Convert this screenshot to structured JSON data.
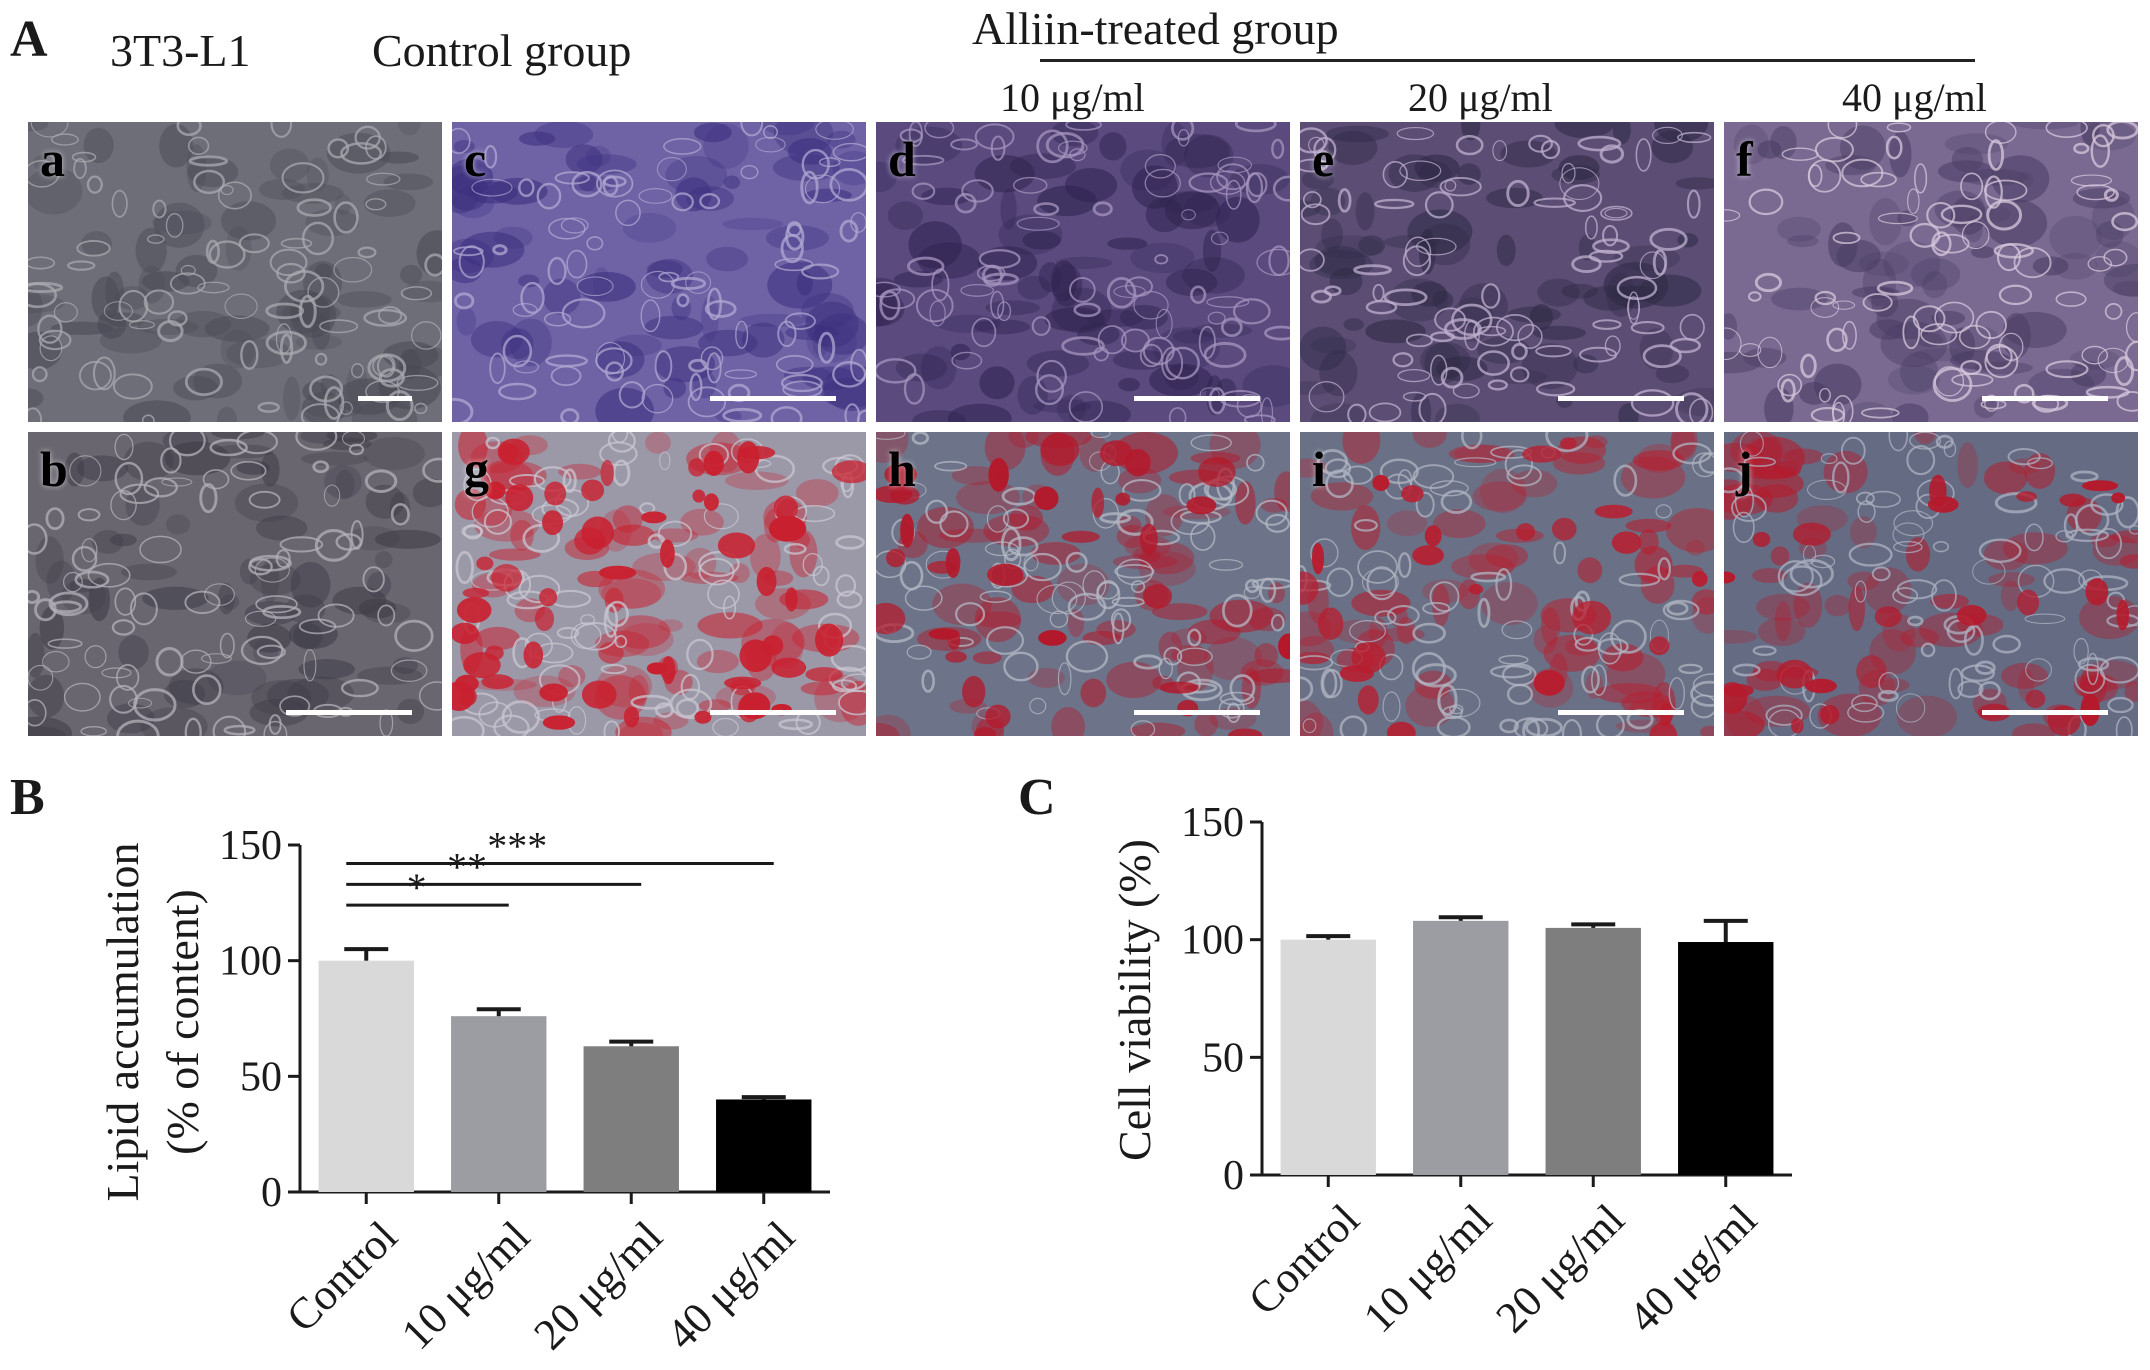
{
  "panel_labels": {
    "A": "A",
    "B": "B",
    "C": "C"
  },
  "headers": {
    "col_3t3": "3T3-L1",
    "col_control": "Control group",
    "treated_group": "Alliin-treated group",
    "dose_10": "10 μg/ml",
    "dose_20": "20 μg/ml",
    "dose_40": "40 μg/ml"
  },
  "micrographs": [
    {
      "letter": "a",
      "stain": "phase-contrast",
      "colors": [
        "#6e6e78",
        "#a9a9b0",
        "#4a4a55"
      ]
    },
    {
      "letter": "c",
      "stain": "crystal violet",
      "colors": [
        "#6f63a6",
        "#b0a8d2",
        "#3c2f7e"
      ]
    },
    {
      "letter": "d",
      "stain": "crystal violet",
      "colors": [
        "#5a4a7e",
        "#a796bf",
        "#2f2450"
      ]
    },
    {
      "letter": "e",
      "stain": "crystal violet",
      "colors": [
        "#5b4d74",
        "#c0b0cf",
        "#2f2a45"
      ]
    },
    {
      "letter": "f",
      "stain": "crystal violet",
      "colors": [
        "#7a6a92",
        "#d8c8dc",
        "#4a3d63"
      ]
    },
    {
      "letter": "b",
      "stain": "phase-contrast",
      "colors": [
        "#6a6670",
        "#b5b2ba",
        "#3f3c47"
      ]
    },
    {
      "letter": "g",
      "stain": "oil red O",
      "colors": [
        "#9b98a8",
        "#c9c7d2",
        "#c9202f"
      ]
    },
    {
      "letter": "h",
      "stain": "oil red O",
      "colors": [
        "#6d7388",
        "#b6b9c6",
        "#b3192b"
      ]
    },
    {
      "letter": "i",
      "stain": "oil red O",
      "colors": [
        "#6a7085",
        "#b2b5c3",
        "#b81d2e"
      ]
    },
    {
      "letter": "j",
      "stain": "oil red O",
      "colors": [
        "#656b82",
        "#aeb2c2",
        "#b51a2c"
      ]
    }
  ],
  "chart_data": [
    {
      "id": "B",
      "type": "bar",
      "ylabel_line1": "Lipid accumulation",
      "ylabel_line2": "(% of content)",
      "categories": [
        "Control",
        "10 μg/ml",
        "20 μg/ml",
        "40 μg/ml"
      ],
      "values": [
        100,
        76,
        63,
        40
      ],
      "errors": [
        5,
        3,
        2,
        1
      ],
      "colors": [
        "#d9d9d9",
        "#9c9ca3",
        "#7e7e7e",
        "#000000"
      ],
      "ylim": [
        0,
        150
      ],
      "yticks": [
        0,
        50,
        100,
        150
      ],
      "significance": [
        {
          "from": 0,
          "to": 1,
          "label": "*"
        },
        {
          "from": 0,
          "to": 2,
          "label": "**"
        },
        {
          "from": 0,
          "to": 3,
          "label": "***"
        }
      ]
    },
    {
      "id": "C",
      "type": "bar",
      "ylabel_line1": "Cell viability (%)",
      "categories": [
        "Control",
        "10 μg/ml",
        "20 μg/ml",
        "40 μg/ml"
      ],
      "values": [
        100,
        108,
        105,
        99
      ],
      "errors": [
        1.5,
        1.5,
        1.5,
        9
      ],
      "colors": [
        "#d9d9d9",
        "#9c9ca3",
        "#7e7e7e",
        "#000000"
      ],
      "ylim": [
        0,
        150
      ],
      "yticks": [
        0,
        50,
        100,
        150
      ]
    }
  ]
}
